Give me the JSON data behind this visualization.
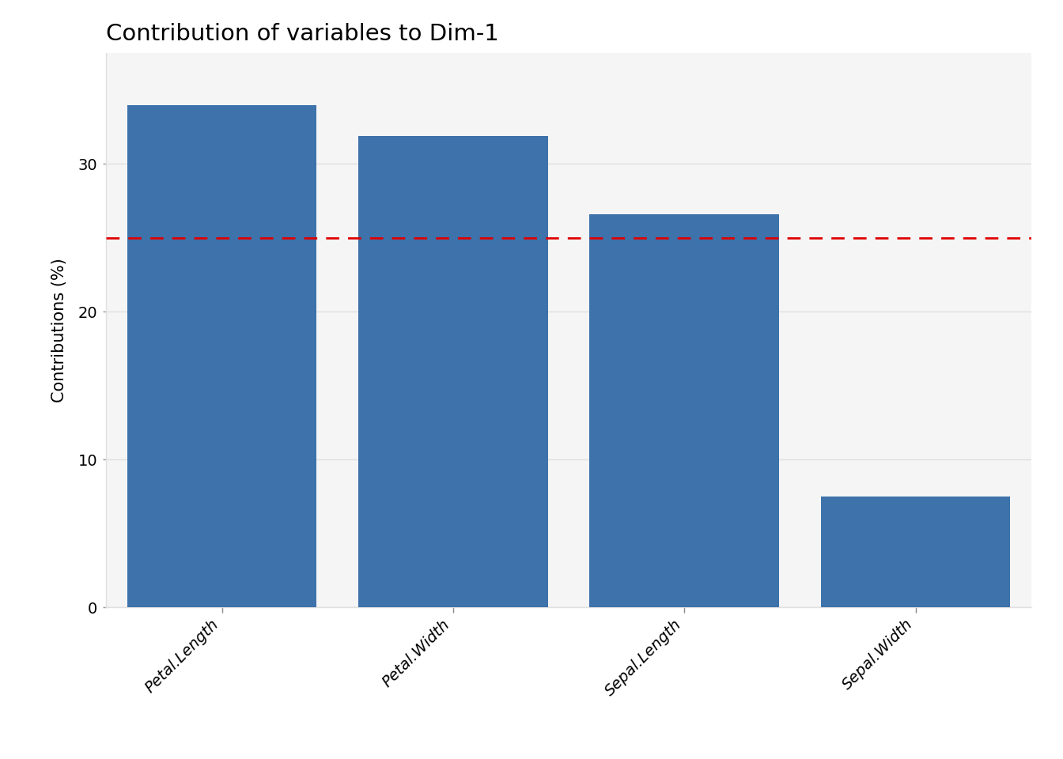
{
  "categories": [
    "Petal.Length",
    "Petal.Width",
    "Sepal.Length",
    "Sepal.Width"
  ],
  "values": [
    34.0,
    31.9,
    26.6,
    7.5
  ],
  "bar_color": "#3d72aa",
  "hline_y": 25.0,
  "hline_color": "#e00000",
  "title": "Contribution of variables to Dim-1",
  "ylabel": "Contributions (%)",
  "ylim": [
    0,
    37.5
  ],
  "yticks": [
    0,
    10,
    20,
    30
  ],
  "panel_bg": "#f5f5f5",
  "plot_bg": "#ffffff",
  "grid_color": "#e0e0e0",
  "title_fontsize": 21,
  "label_fontsize": 15,
  "tick_fontsize": 14,
  "bar_width": 0.82
}
